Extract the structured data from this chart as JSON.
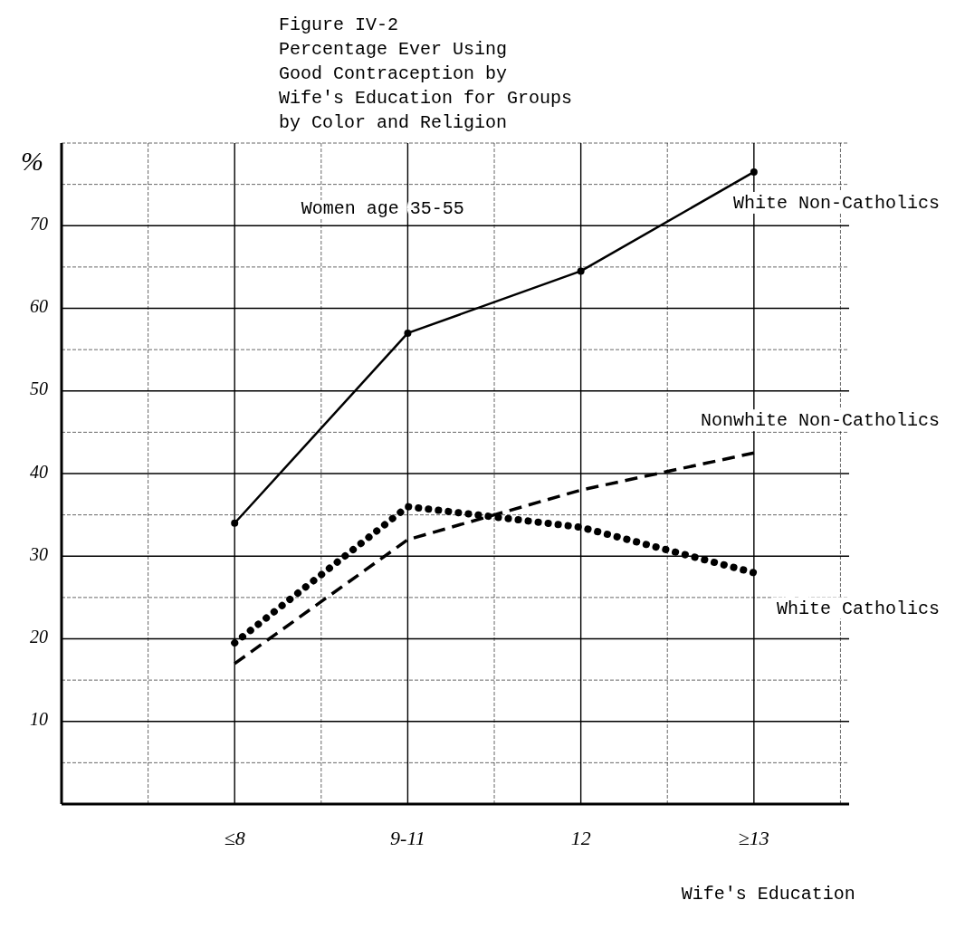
{
  "chart_data": {
    "type": "line",
    "title": "Figure IV-2\nPercentage Ever Using\nGood Contraception by\nWife's Education for Groups\nby Color and Religion",
    "xlabel": "Wife's Education",
    "ylabel": "%",
    "annotations": [
      "Women age 35-55"
    ],
    "categories": [
      "≤8",
      "9-11",
      "12",
      "≥13"
    ],
    "series": [
      {
        "name": "White Non-Catholics",
        "color": "#000000",
        "values": [
          34,
          57,
          64.5,
          76.5
        ],
        "line_style": "solid",
        "marker": "circle"
      },
      {
        "name": "Nonwhite Non-Catholics",
        "color": "#000000",
        "values": [
          17,
          32,
          38,
          42.5
        ],
        "line_style": "dashed"
      },
      {
        "name": "White Catholics",
        "color": "#000000",
        "values": [
          19.5,
          36,
          33.5,
          28
        ],
        "line_style": "dotted"
      }
    ],
    "ylim": [
      0,
      80
    ],
    "yticks": [
      10,
      20,
      30,
      40,
      50,
      60,
      70
    ],
    "grid": true
  }
}
